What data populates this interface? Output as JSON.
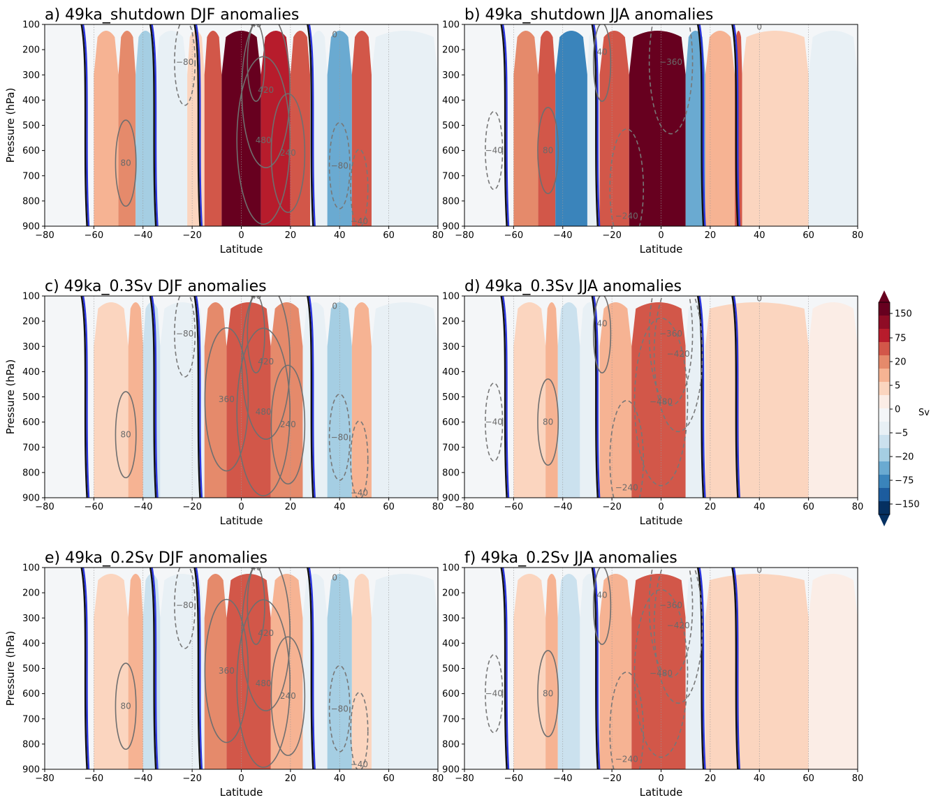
{
  "figure": {
    "colorbar": {
      "label": "Sv",
      "tick_labels": [
        "150",
        "75",
        "20",
        "5",
        "0",
        "−5",
        "−20",
        "−75",
        "−150"
      ],
      "levels": [
        -150,
        -100,
        -75,
        -50,
        -20,
        -10,
        -5,
        -2,
        0,
        2,
        5,
        10,
        20,
        50,
        75,
        100,
        150
      ],
      "colors": [
        "#053061",
        "#1c5c9e",
        "#3a84bb",
        "#6aaad1",
        "#a5cee3",
        "#cbe1ee",
        "#e8f0f5",
        "#f4f6f8",
        "#fbede6",
        "#fbd5bf",
        "#f6b393",
        "#e58a6b",
        "#d25749",
        "#b71c2c",
        "#8e0c25",
        "#67001f"
      ]
    },
    "panel_border": "#000000",
    "zero_contour_colors": {
      "model": "#111111",
      "reference": "#2a35e0"
    }
  },
  "chart_data": [
    {
      "type": "heatmap",
      "panel": "a",
      "title": "a) 49ka_shutdown DJF anomalies",
      "xlabel": "Latitude",
      "ylabel": "Pressure (hPa)",
      "x_ticks": [
        -80,
        -60,
        -40,
        -20,
        0,
        20,
        40,
        60,
        80
      ],
      "y_ticks": [
        100,
        200,
        300,
        400,
        500,
        600,
        700,
        800,
        900
      ],
      "xlim": [
        -80,
        80
      ],
      "ylim": [
        900,
        100
      ],
      "anomaly_cells": [
        {
          "lat_range": [
            -60,
            -50
          ],
          "value": 8
        },
        {
          "lat_range": [
            -50,
            -43
          ],
          "value": 12
        },
        {
          "lat_range": [
            -43,
            -35
          ],
          "value": -20
        },
        {
          "lat_range": [
            -35,
            -22
          ],
          "value": -3
        },
        {
          "lat_range": [
            -22,
            -15
          ],
          "value": 2
        },
        {
          "lat_range": [
            -15,
            -8
          ],
          "value": 30
        },
        {
          "lat_range": [
            -8,
            8
          ],
          "value": 150
        },
        {
          "lat_range": [
            8,
            20
          ],
          "value": 60
        },
        {
          "lat_range": [
            20,
            28
          ],
          "value": 20
        },
        {
          "lat_range": [
            28,
            35
          ],
          "value": -5
        },
        {
          "lat_range": [
            35,
            45
          ],
          "value": -50
        },
        {
          "lat_range": [
            45,
            53
          ],
          "value": 20
        },
        {
          "lat_range": [
            53,
            80
          ],
          "value": -5
        }
      ],
      "contours": [
        {
          "label": "80",
          "value": 80,
          "lat": -47,
          "p": 650
        },
        {
          "label": "−80",
          "value": -80,
          "lat": -23,
          "p": 250
        },
        {
          "label": "40",
          "value": 40,
          "lat": 6,
          "p": 100
        },
        {
          "label": "420",
          "value": 420,
          "lat": 10,
          "p": 360
        },
        {
          "label": "480",
          "value": 480,
          "lat": 9,
          "p": 560
        },
        {
          "label": "240",
          "value": 240,
          "lat": 19,
          "p": 610
        },
        {
          "label": "−80",
          "value": -80,
          "lat": 40,
          "p": 660
        },
        {
          "label": "−40",
          "value": -40,
          "lat": 48,
          "p": 880
        },
        {
          "label": "0",
          "value": 0,
          "lat": 38,
          "p": 140
        }
      ]
    },
    {
      "type": "heatmap",
      "panel": "b",
      "title": "b) 49ka_shutdown JJA anomalies",
      "xlabel": "Latitude",
      "ylabel": "",
      "x_ticks": [
        -80,
        -60,
        -40,
        -20,
        0,
        20,
        40,
        60,
        80
      ],
      "y_ticks": [
        100,
        200,
        300,
        400,
        500,
        600,
        700,
        800,
        900
      ],
      "xlim": [
        -80,
        80
      ],
      "ylim": [
        900,
        100
      ],
      "anomaly_cells": [
        {
          "lat_range": [
            -60,
            -50
          ],
          "value": 12
        },
        {
          "lat_range": [
            -50,
            -43
          ],
          "value": 20
        },
        {
          "lat_range": [
            -43,
            -30
          ],
          "value": -60
        },
        {
          "lat_range": [
            -30,
            -25
          ],
          "value": -5
        },
        {
          "lat_range": [
            -25,
            -13
          ],
          "value": 40
        },
        {
          "lat_range": [
            -13,
            10
          ],
          "value": 150
        },
        {
          "lat_range": [
            10,
            18
          ],
          "value": -40
        },
        {
          "lat_range": [
            18,
            30
          ],
          "value": 8
        },
        {
          "lat_range": [
            30,
            33
          ],
          "value": 25
        },
        {
          "lat_range": [
            33,
            60
          ],
          "value": 4
        },
        {
          "lat_range": [
            60,
            80
          ],
          "value": -4
        }
      ],
      "contours": [
        {
          "label": "−40",
          "value": -40,
          "lat": -68,
          "p": 600
        },
        {
          "label": "80",
          "value": 80,
          "lat": -46,
          "p": 600
        },
        {
          "label": "40",
          "value": 40,
          "lat": -24,
          "p": 210
        },
        {
          "label": "−360",
          "value": -360,
          "lat": 4,
          "p": 250
        },
        {
          "label": "−240",
          "value": -240,
          "lat": -14,
          "p": 860
        },
        {
          "label": "0",
          "value": 0,
          "lat": 40,
          "p": 110
        }
      ]
    },
    {
      "type": "heatmap",
      "panel": "c",
      "title": "c) 49ka_0.3Sv DJF anomalies",
      "xlabel": "Latitude",
      "ylabel": "Pressure (hPa)",
      "x_ticks": [
        -80,
        -60,
        -40,
        -20,
        0,
        20,
        40,
        60,
        80
      ],
      "y_ticks": [
        100,
        200,
        300,
        400,
        500,
        600,
        700,
        800,
        900
      ],
      "xlim": [
        -80,
        80
      ],
      "ylim": [
        900,
        100
      ],
      "anomaly_cells": [
        {
          "lat_range": [
            -60,
            -46
          ],
          "value": 3
        },
        {
          "lat_range": [
            -46,
            -40
          ],
          "value": 6
        },
        {
          "lat_range": [
            -40,
            -33
          ],
          "value": -7
        },
        {
          "lat_range": [
            -33,
            -15
          ],
          "value": -3
        },
        {
          "lat_range": [
            -15,
            -6
          ],
          "value": 15
        },
        {
          "lat_range": [
            -6,
            12
          ],
          "value": 45
        },
        {
          "lat_range": [
            12,
            25
          ],
          "value": 12
        },
        {
          "lat_range": [
            25,
            35
          ],
          "value": -3
        },
        {
          "lat_range": [
            35,
            45
          ],
          "value": -12
        },
        {
          "lat_range": [
            45,
            53
          ],
          "value": 6
        },
        {
          "lat_range": [
            53,
            80
          ],
          "value": -3
        }
      ],
      "contours": [
        {
          "label": "80",
          "value": 80,
          "lat": -47,
          "p": 650
        },
        {
          "label": "−80",
          "value": -80,
          "lat": -23,
          "p": 250
        },
        {
          "label": "40",
          "value": 40,
          "lat": 6,
          "p": 100
        },
        {
          "label": "360",
          "value": 360,
          "lat": -6,
          "p": 510
        },
        {
          "label": "420",
          "value": 420,
          "lat": 10,
          "p": 360
        },
        {
          "label": "480",
          "value": 480,
          "lat": 9,
          "p": 560
        },
        {
          "label": "240",
          "value": 240,
          "lat": 19,
          "p": 610
        },
        {
          "label": "−80",
          "value": -80,
          "lat": 40,
          "p": 660
        },
        {
          "label": "−40",
          "value": -40,
          "lat": 48,
          "p": 880
        },
        {
          "label": "0",
          "value": 0,
          "lat": 38,
          "p": 140
        }
      ]
    },
    {
      "type": "heatmap",
      "panel": "d",
      "title": "d) 49ka_0.3Sv JJA anomalies",
      "xlabel": "Latitude",
      "ylabel": "",
      "x_ticks": [
        -80,
        -60,
        -40,
        -20,
        0,
        20,
        40,
        60,
        80
      ],
      "y_ticks": [
        100,
        200,
        300,
        400,
        500,
        600,
        700,
        800,
        900
      ],
      "xlim": [
        -80,
        80
      ],
      "ylim": [
        900,
        100
      ],
      "anomaly_cells": [
        {
          "lat_range": [
            -60,
            -47
          ],
          "value": 3
        },
        {
          "lat_range": [
            -47,
            -42
          ],
          "value": 6
        },
        {
          "lat_range": [
            -42,
            -33
          ],
          "value": -10
        },
        {
          "lat_range": [
            -33,
            -25
          ],
          "value": -3
        },
        {
          "lat_range": [
            -25,
            -12
          ],
          "value": 8
        },
        {
          "lat_range": [
            -12,
            10
          ],
          "value": 25
        },
        {
          "lat_range": [
            10,
            18
          ],
          "value": -4
        },
        {
          "lat_range": [
            18,
            60
          ],
          "value": 3
        },
        {
          "lat_range": [
            60,
            80
          ],
          "value": 1
        }
      ],
      "contours": [
        {
          "label": "−40",
          "value": -40,
          "lat": -68,
          "p": 600
        },
        {
          "label": "80",
          "value": 80,
          "lat": -46,
          "p": 600
        },
        {
          "label": "40",
          "value": 40,
          "lat": -24,
          "p": 210
        },
        {
          "label": "−360",
          "value": -360,
          "lat": 4,
          "p": 250
        },
        {
          "label": "−420",
          "value": -420,
          "lat": 7,
          "p": 330
        },
        {
          "label": "−480",
          "value": -480,
          "lat": 0,
          "p": 520
        },
        {
          "label": "−240",
          "value": -240,
          "lat": -14,
          "p": 860
        },
        {
          "label": "0",
          "value": 0,
          "lat": 40,
          "p": 110
        }
      ]
    },
    {
      "type": "heatmap",
      "panel": "e",
      "title": "e) 49ka_0.2Sv DJF anomalies",
      "xlabel": "Latitude",
      "ylabel": "Pressure (hPa)",
      "x_ticks": [
        -80,
        -60,
        -40,
        -20,
        0,
        20,
        40,
        60,
        80
      ],
      "y_ticks": [
        100,
        200,
        300,
        400,
        500,
        600,
        700,
        800,
        900
      ],
      "xlim": [
        -80,
        80
      ],
      "ylim": [
        900,
        100
      ],
      "anomaly_cells": [
        {
          "lat_range": [
            -60,
            -46
          ],
          "value": 3
        },
        {
          "lat_range": [
            -46,
            -40
          ],
          "value": 5
        },
        {
          "lat_range": [
            -40,
            -33
          ],
          "value": -6
        },
        {
          "lat_range": [
            -33,
            -15
          ],
          "value": -3
        },
        {
          "lat_range": [
            -15,
            -6
          ],
          "value": 12
        },
        {
          "lat_range": [
            -6,
            12
          ],
          "value": 30
        },
        {
          "lat_range": [
            12,
            25
          ],
          "value": 8
        },
        {
          "lat_range": [
            25,
            35
          ],
          "value": -3
        },
        {
          "lat_range": [
            35,
            45
          ],
          "value": -12
        },
        {
          "lat_range": [
            45,
            53
          ],
          "value": 4
        },
        {
          "lat_range": [
            53,
            80
          ],
          "value": -3
        }
      ],
      "contours": [
        {
          "label": "80",
          "value": 80,
          "lat": -47,
          "p": 650
        },
        {
          "label": "−80",
          "value": -80,
          "lat": -23,
          "p": 250
        },
        {
          "label": "40",
          "value": 40,
          "lat": 6,
          "p": 100
        },
        {
          "label": "360",
          "value": 360,
          "lat": -6,
          "p": 510
        },
        {
          "label": "420",
          "value": 420,
          "lat": 10,
          "p": 360
        },
        {
          "label": "480",
          "value": 480,
          "lat": 9,
          "p": 560
        },
        {
          "label": "240",
          "value": 240,
          "lat": 19,
          "p": 610
        },
        {
          "label": "−80",
          "value": -80,
          "lat": 40,
          "p": 660
        },
        {
          "label": "−40",
          "value": -40,
          "lat": 48,
          "p": 880
        },
        {
          "label": "0",
          "value": 0,
          "lat": 38,
          "p": 140
        }
      ]
    },
    {
      "type": "heatmap",
      "panel": "f",
      "title": "f) 49ka_0.2Sv JJA anomalies",
      "xlabel": "Latitude",
      "ylabel": "",
      "x_ticks": [
        -80,
        -60,
        -40,
        -20,
        0,
        20,
        40,
        60,
        80
      ],
      "y_ticks": [
        100,
        200,
        300,
        400,
        500,
        600,
        700,
        800,
        900
      ],
      "xlim": [
        -80,
        80
      ],
      "ylim": [
        900,
        100
      ],
      "anomaly_cells": [
        {
          "lat_range": [
            -60,
            -47
          ],
          "value": 3
        },
        {
          "lat_range": [
            -47,
            -42
          ],
          "value": 6
        },
        {
          "lat_range": [
            -42,
            -33
          ],
          "value": -10
        },
        {
          "lat_range": [
            -33,
            -25
          ],
          "value": -3
        },
        {
          "lat_range": [
            -25,
            -12
          ],
          "value": 8
        },
        {
          "lat_range": [
            -12,
            10
          ],
          "value": 25
        },
        {
          "lat_range": [
            10,
            18
          ],
          "value": -4
        },
        {
          "lat_range": [
            18,
            60
          ],
          "value": 2
        },
        {
          "lat_range": [
            60,
            80
          ],
          "value": 1
        }
      ],
      "contours": [
        {
          "label": "−40",
          "value": -40,
          "lat": -68,
          "p": 600
        },
        {
          "label": "80",
          "value": 80,
          "lat": -46,
          "p": 600
        },
        {
          "label": "40",
          "value": 40,
          "lat": -24,
          "p": 210
        },
        {
          "label": "−360",
          "value": -360,
          "lat": 4,
          "p": 250
        },
        {
          "label": "−420",
          "value": -420,
          "lat": 7,
          "p": 330
        },
        {
          "label": "−480",
          "value": -480,
          "lat": 0,
          "p": 520
        },
        {
          "label": "−240",
          "value": -240,
          "lat": -14,
          "p": 860
        },
        {
          "label": "0",
          "value": 0,
          "lat": 40,
          "p": 110
        }
      ]
    }
  ]
}
